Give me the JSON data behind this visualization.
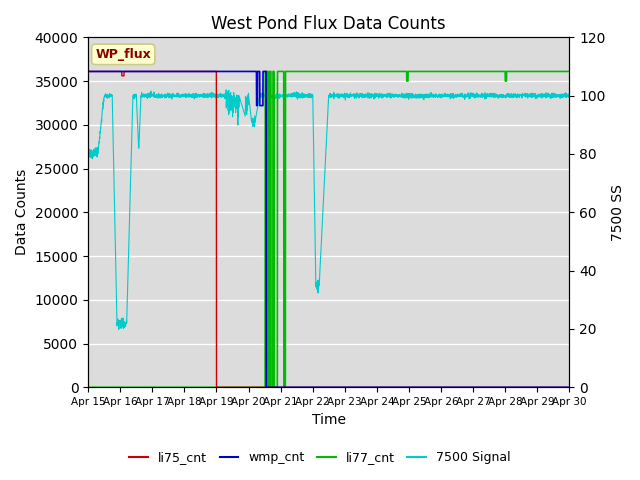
{
  "title": "West Pond Flux Data Counts",
  "xlabel": "Time",
  "ylabel_left": "Data Counts",
  "ylabel_right": "7500 SS",
  "ylim_left": [
    0,
    40000
  ],
  "ylim_right": [
    0,
    120
  ],
  "xlim": [
    0,
    15
  ],
  "x_tick_labels": [
    "Apr 15",
    "Apr 16",
    "Apr 17",
    "Apr 18",
    "Apr 19",
    "Apr 20",
    "Apr 21",
    "Apr 22",
    "Apr 23",
    "Apr 24",
    "Apr 25",
    "Apr 26",
    "Apr 27",
    "Apr 28",
    "Apr 29",
    "Apr 30"
  ],
  "background_color": "#dcdcdc",
  "legend_labels": [
    "li75_cnt",
    "wmp_cnt",
    "li77_cnt",
    "7500 Signal"
  ],
  "legend_colors": [
    "#cc0000",
    "#0000cc",
    "#00bb00",
    "#00cccc"
  ],
  "annotation_text": "WP_flux",
  "annotation_color": "#880000",
  "annotation_bg": "#ffffcc",
  "annotation_border": "#cccc88"
}
